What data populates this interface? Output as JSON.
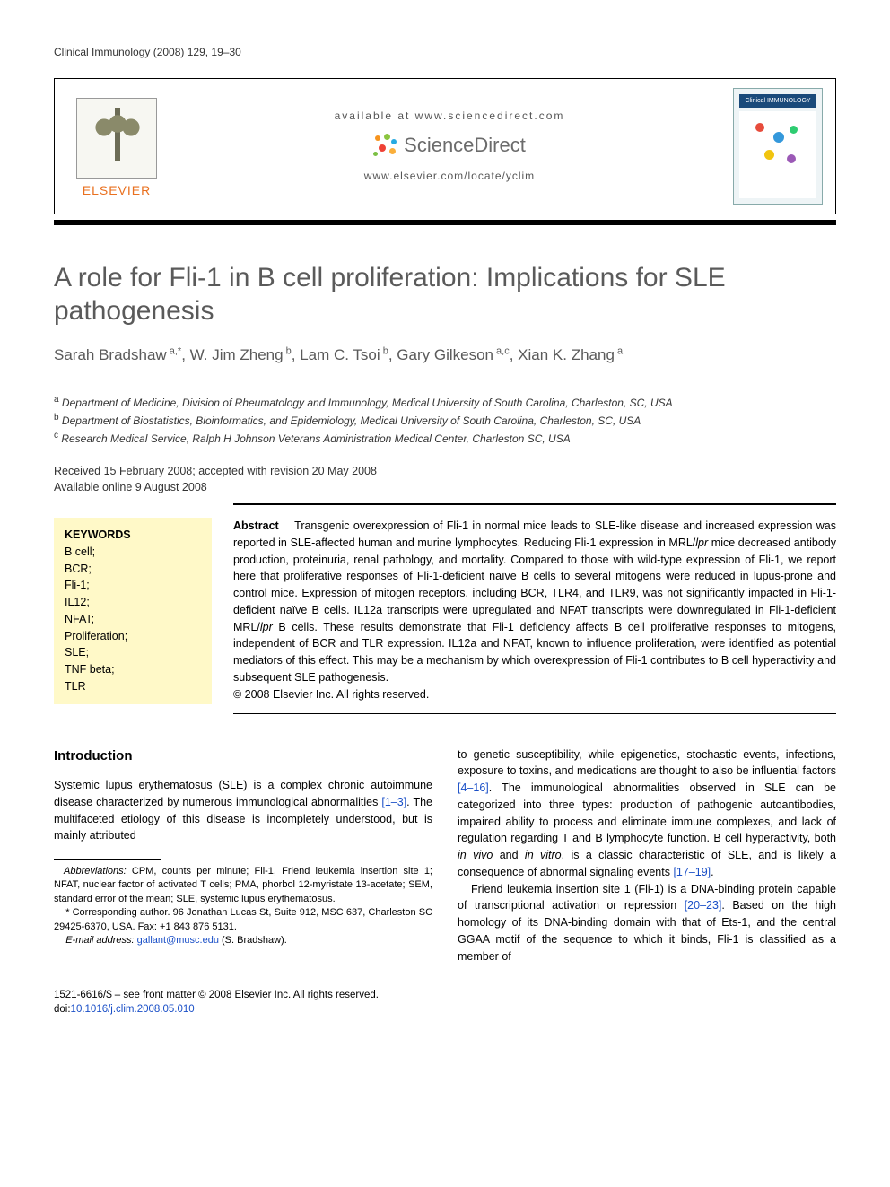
{
  "running_head": "Clinical Immunology (2008) 129, 19–30",
  "banner": {
    "available_at": "available at www.sciencedirect.com",
    "sd_brand": "ScienceDirect",
    "locate_url": "www.elsevier.com/locate/yclim",
    "elsevier_word": "ELSEVIER",
    "journal_thumb_title": "Clinical IMMUNOLOGY",
    "sd_dot_colors": [
      "#f7941e",
      "#8bc53f",
      "#27aae1",
      "#ef4136",
      "#faaf3b",
      "#7bc043"
    ]
  },
  "title": "A role for Fli-1 in B cell proliferation: Implications for SLE pathogenesis",
  "authors_html": "Sarah Bradshaw<sup> a,*</sup>, W. Jim Zheng<sup> b</sup>, Lam C. Tsoi<sup> b</sup>, Gary Gilkeson<sup> a,c</sup>, Xian K. Zhang<sup> a</sup>",
  "affiliations": [
    {
      "sup": "a",
      "text": "Department of Medicine, Division of Rheumatology and Immunology, Medical University of South Carolina, Charleston, SC, USA"
    },
    {
      "sup": "b",
      "text": "Department of Biostatistics, Bioinformatics, and Epidemiology, Medical University of South Carolina, Charleston, SC, USA"
    },
    {
      "sup": "c",
      "text": "Research Medical Service, Ralph H Johnson Veterans Administration Medical Center, Charleston SC, USA"
    }
  ],
  "dates": {
    "received": "Received 15 February 2008; accepted with revision 20 May 2008",
    "online": "Available online 9 August 2008"
  },
  "keywords_head": "KEYWORDS",
  "keywords": [
    "B cell;",
    "BCR;",
    "Fli-1;",
    "IL12;",
    "NFAT;",
    "Proliferation;",
    "SLE;",
    "TNF beta;",
    "TLR"
  ],
  "abstract_label": "Abstract",
  "abstract_text": "Transgenic overexpression of Fli-1 in normal mice leads to SLE-like disease and increased expression was reported in SLE-affected human and murine lymphocytes. Reducing Fli-1 expression in MRL/lpr mice decreased antibody production, proteinuria, renal pathology, and mortality. Compared to those with wild-type expression of Fli-1, we report here that proliferative responses of Fli-1-deficient naïve B cells to several mitogens were reduced in lupus-prone and control mice. Expression of mitogen receptors, including BCR, TLR4, and TLR9, was not significantly impacted in Fli-1-deficient naïve B cells. IL12a transcripts were upregulated and NFAT transcripts were downregulated in Fli-1-deficient MRL/lpr B cells. These results demonstrate that Fli-1 deficiency affects B cell proliferative responses to mitogens, independent of BCR and TLR expression. IL12a and NFAT, known to influence proliferation, were identified as potential mediators of this effect. This may be a mechanism by which overexpression of Fli-1 contributes to B cell hyperactivity and subsequent SLE pathogenesis.",
  "copyright_line": "© 2008 Elsevier Inc. All rights reserved.",
  "intro_head": "Introduction",
  "intro_col1": "Systemic lupus erythematosus (SLE) is a complex chronic autoimmune disease characterized by numerous immunological abnormalities [1–3]. The multifaceted etiology of this disease is incompletely understood, but is mainly attributed",
  "intro_col2_p1": "to genetic susceptibility, while epigenetics, stochastic events, infections, exposure to toxins, and medications are thought to also be influential factors [4–16]. The immunological abnormalities observed in SLE can be categorized into three types: production of pathogenic autoantibodies, impaired ability to process and eliminate immune complexes, and lack of regulation regarding T and B lymphocyte function. B cell hyperactivity, both in vivo and in vitro, is a classic characteristic of SLE, and is likely a consequence of abnormal signaling events [17–19].",
  "intro_col2_p2": "Friend leukemia insertion site 1 (Fli-1) is a DNA-binding protein capable of transcriptional activation or repression [20–23]. Based on the high homology of its DNA-binding domain with that of Ets-1, and the central GGAA motif of the sequence to which it binds, Fli-1 is classified as a member of",
  "link_refs": {
    "r1": "[1–3]",
    "r4": "[4–16]",
    "r17": "[17–19]",
    "r20": "[20–23]"
  },
  "footnotes": {
    "abbrev_label": "Abbreviations:",
    "abbrev_text": " CPM, counts per minute; Fli-1, Friend leukemia insertion site 1; NFAT, nuclear factor of activated T cells; PMA, phorbol 12-myristate 13-acetate; SEM, standard error of the mean; SLE, systemic lupus erythematosus.",
    "corr_label": "* Corresponding author.",
    "corr_text": " 96 Jonathan Lucas St, Suite 912, MSC 637, Charleston SC 29425-6370, USA. Fax: +1 843 876 5131.",
    "email_label": "E-mail address:",
    "email": "gallant@musc.edu",
    "email_tail": " (S. Bradshaw)."
  },
  "bottom": {
    "issn_line": "1521-6616/$ – see front matter © 2008 Elsevier Inc. All rights reserved.",
    "doi_label": "doi:",
    "doi": "10.1016/j.clim.2008.05.010"
  },
  "colors": {
    "title_gray": "#5a5a5a",
    "link_blue": "#1a4fc7",
    "kw_bg": "#fff9c8",
    "elsevier_orange": "#e9701f"
  }
}
